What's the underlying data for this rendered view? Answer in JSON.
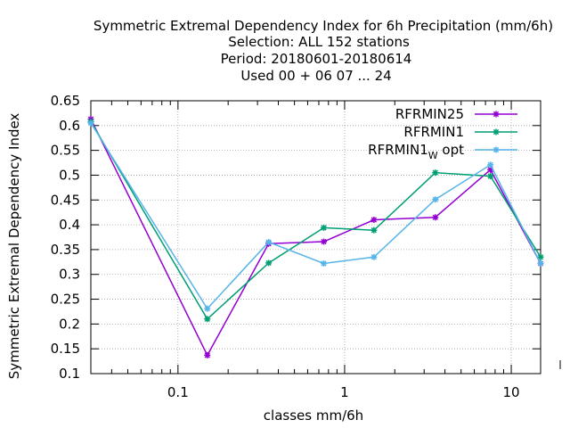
{
  "chart_data": {
    "type": "line",
    "title_lines": [
      "Symmetric Extremal Dependency Index  for 6h Precipitation (mm/6h)",
      "Selection: ALL    152 stations",
      "Period: 20180601-20180614",
      "Used  00 + 06 07 ... 24"
    ],
    "xlabel": "classes mm/6h",
    "ylabel": "Symmetric Extremal Dependency Index",
    "x_scale": "log",
    "xlim": [
      0.03,
      15
    ],
    "ylim": [
      0.1,
      0.65
    ],
    "x_ticks": [
      {
        "value": 0.1,
        "label": "0.1"
      },
      {
        "value": 1,
        "label": "1"
      },
      {
        "value": 10,
        "label": "10"
      }
    ],
    "y_ticks": [
      {
        "value": 0.1,
        "label": "0.1"
      },
      {
        "value": 0.15,
        "label": "0.15"
      },
      {
        "value": 0.2,
        "label": "0.2"
      },
      {
        "value": 0.25,
        "label": "0.25"
      },
      {
        "value": 0.3,
        "label": "0.3"
      },
      {
        "value": 0.35,
        "label": "0.35"
      },
      {
        "value": 0.4,
        "label": "0.4"
      },
      {
        "value": 0.45,
        "label": "0.45"
      },
      {
        "value": 0.5,
        "label": "0.5"
      },
      {
        "value": 0.55,
        "label": "0.55"
      },
      {
        "value": 0.6,
        "label": "0.6"
      },
      {
        "value": 0.65,
        "label": "0.65"
      }
    ],
    "grid": true,
    "legend_position": "top-right",
    "x": [
      0.03,
      0.15,
      0.35,
      0.75,
      1.5,
      3.5,
      7.5,
      15
    ],
    "series": [
      {
        "name": "RFRMIN25",
        "name_sub": "",
        "name_suffix": "",
        "color": "#9400d3",
        "values": [
          0.613,
          0.137,
          0.362,
          0.366,
          0.41,
          0.415,
          0.511,
          0.322
        ]
      },
      {
        "name": "RFRMIN1",
        "name_sub": "",
        "name_suffix": "",
        "color": "#009e73",
        "values": [
          0.608,
          0.21,
          0.323,
          0.394,
          0.389,
          0.505,
          0.498,
          0.335
        ]
      },
      {
        "name": "RFRMIN1",
        "name_sub": "W",
        "name_suffix": "opt",
        "color": "#56b4e9",
        "values": [
          0.605,
          0.231,
          0.365,
          0.322,
          0.335,
          0.451,
          0.521,
          0.322
        ]
      }
    ]
  }
}
